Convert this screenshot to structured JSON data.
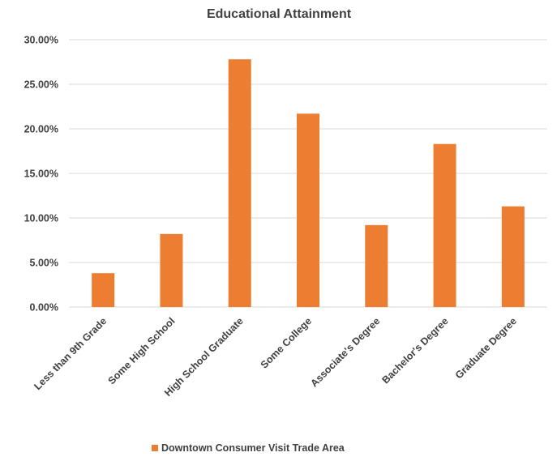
{
  "chart_data": {
    "type": "bar",
    "title": "Educational Attainment",
    "categories": [
      "Less than 9th Grade",
      "Some High School",
      "High School Graduate",
      "Some College",
      "Associate's Degree",
      "Bachelor's Degree",
      "Graduate Degree"
    ],
    "series": [
      {
        "name": "Downtown Consumer Visit Trade Area",
        "color": "#ed7d31",
        "values": [
          3.8,
          8.2,
          27.8,
          21.7,
          9.2,
          18.3,
          11.3
        ]
      }
    ],
    "yticks": [
      "0.00%",
      "5.00%",
      "10.00%",
      "15.00%",
      "20.00%",
      "25.00%",
      "30.00%"
    ],
    "ylim": [
      0,
      30
    ],
    "grid": true,
    "legend": "bottom"
  }
}
